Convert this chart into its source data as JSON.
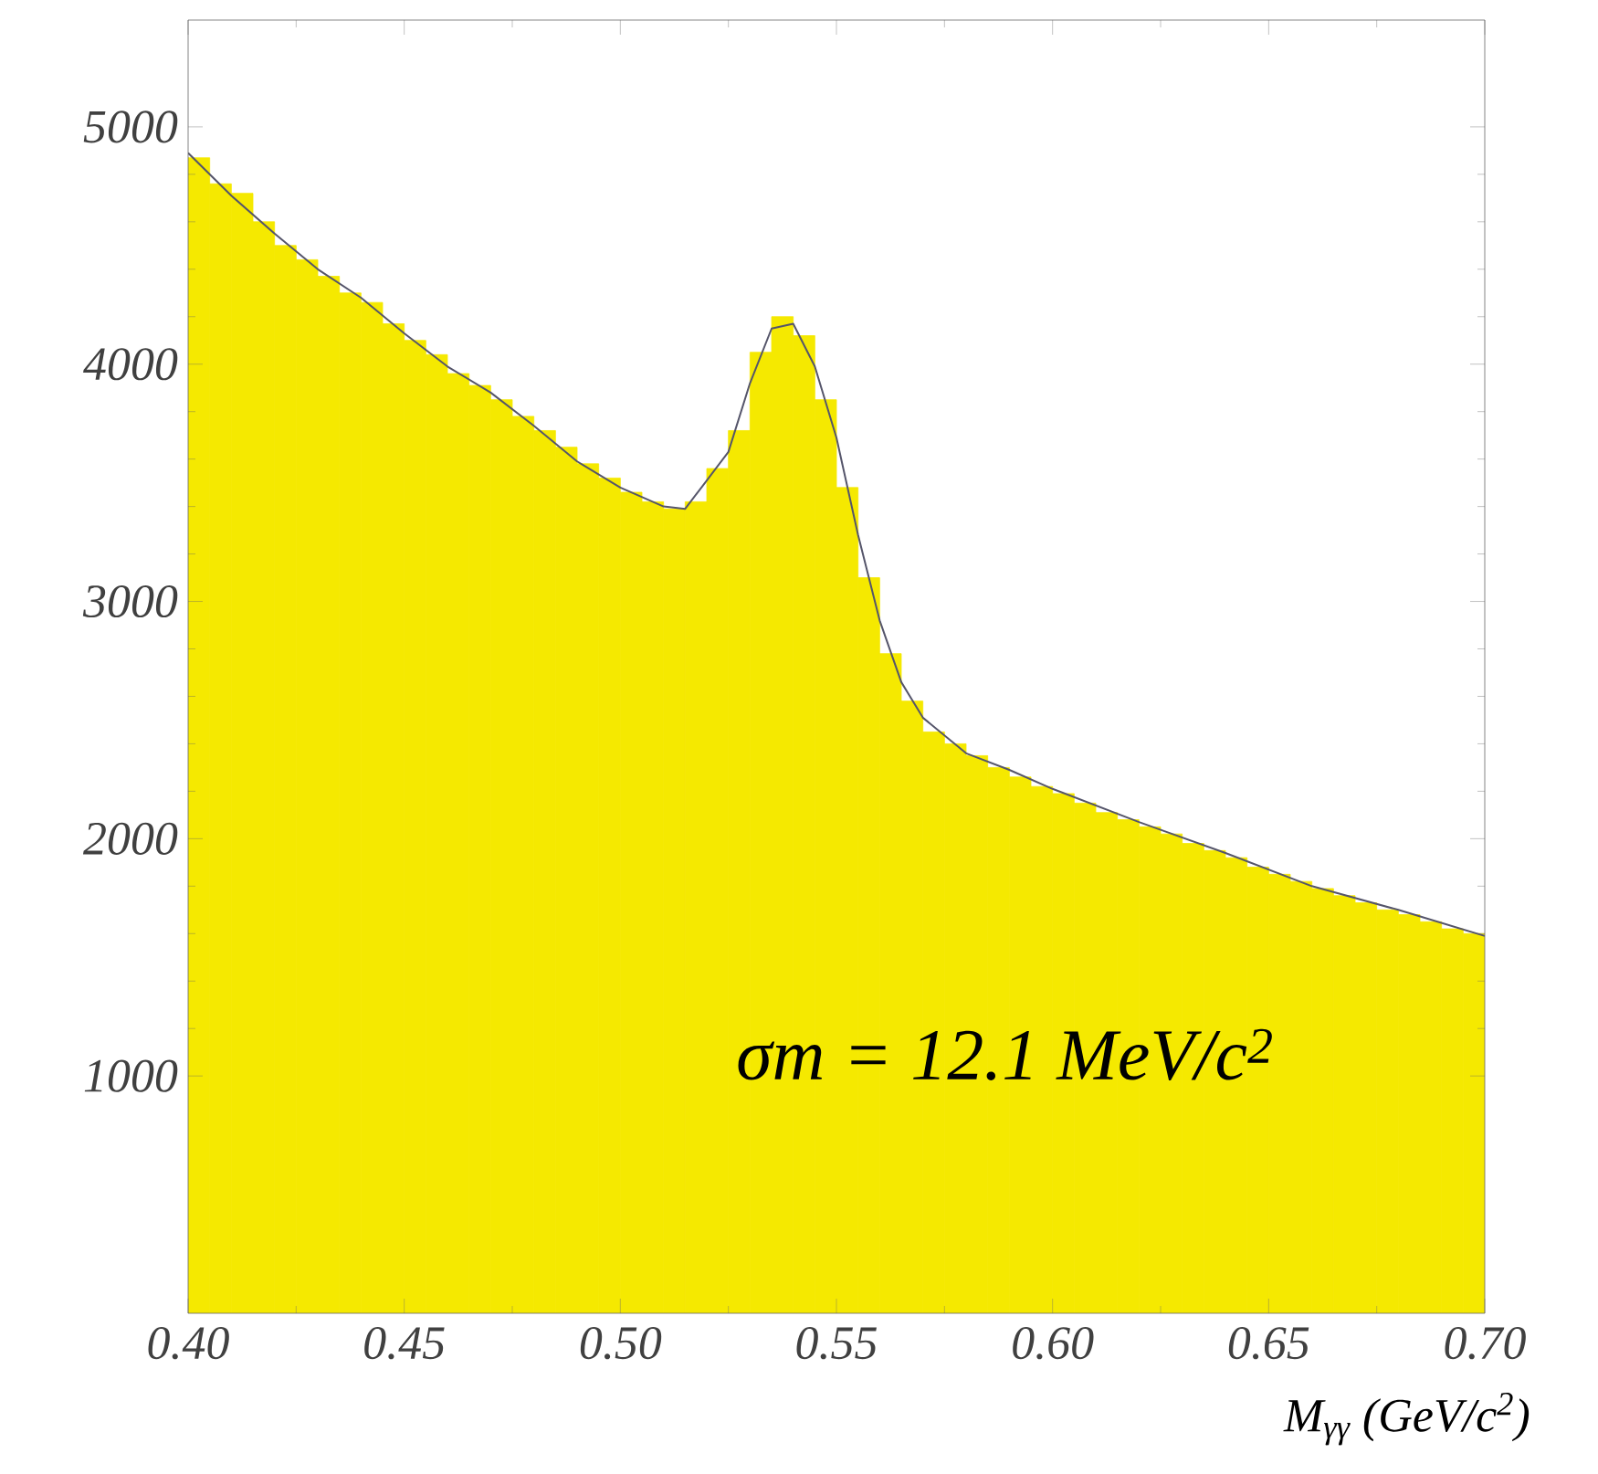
{
  "chart_data": {
    "type": "histogram",
    "xlabel": "M$_{γγ}$  (GeV/c$^{2}$)",
    "annotations": [
      "σm = 12.1 MeV/c$^{2}$"
    ],
    "xlim": [
      0.4,
      0.7
    ],
    "ylim": [
      0,
      5450
    ],
    "xticks": [
      {
        "value": 0.4,
        "label": "0.40"
      },
      {
        "value": 0.45,
        "label": "0.45"
      },
      {
        "value": 0.5,
        "label": "0.50"
      },
      {
        "value": 0.55,
        "label": "0.55"
      },
      {
        "value": 0.6,
        "label": "0.60"
      },
      {
        "value": 0.65,
        "label": "0.65"
      },
      {
        "value": 0.7,
        "label": "0.70"
      }
    ],
    "yticks": [
      1000,
      2000,
      3000,
      4000,
      5000
    ],
    "series": [
      {
        "color": "#f5e900",
        "bins": [
          0.4,
          0.405,
          0.41,
          0.415,
          0.42,
          0.425,
          0.43,
          0.435,
          0.44,
          0.445,
          0.45,
          0.455,
          0.46,
          0.465,
          0.47,
          0.475,
          0.48,
          0.485,
          0.49,
          0.495,
          0.5,
          0.505,
          0.51,
          0.515,
          0.52,
          0.525,
          0.53,
          0.535,
          0.54,
          0.545,
          0.55,
          0.555,
          0.56,
          0.565,
          0.57,
          0.575,
          0.58,
          0.585,
          0.59,
          0.595,
          0.6,
          0.605,
          0.61,
          0.615,
          0.62,
          0.625,
          0.63,
          0.635,
          0.64,
          0.645,
          0.65,
          0.655,
          0.66,
          0.665,
          0.67,
          0.675,
          0.68,
          0.685,
          0.69,
          0.695,
          0.7
        ],
        "values": [
          4870,
          4760,
          4720,
          4600,
          4500,
          4440,
          4370,
          4300,
          4260,
          4170,
          4100,
          4040,
          3960,
          3910,
          3850,
          3780,
          3720,
          3650,
          3580,
          3520,
          3460,
          3420,
          3390,
          3420,
          3560,
          3720,
          4050,
          4200,
          4120,
          3850,
          3480,
          3100,
          2780,
          2580,
          2450,
          2400,
          2350,
          2300,
          2260,
          2220,
          2190,
          2150,
          2110,
          2080,
          2050,
          2020,
          1980,
          1950,
          1920,
          1880,
          1850,
          1820,
          1790,
          1760,
          1730,
          1700,
          1680,
          1650,
          1620,
          1600
        ]
      },
      {
        "type": "line",
        "color": "#55556a",
        "x": [
          0.4,
          0.41,
          0.42,
          0.43,
          0.44,
          0.45,
          0.46,
          0.47,
          0.48,
          0.49,
          0.5,
          0.51,
          0.515,
          0.52,
          0.525,
          0.53,
          0.535,
          0.54,
          0.545,
          0.55,
          0.555,
          0.56,
          0.565,
          0.57,
          0.58,
          0.59,
          0.6,
          0.62,
          0.64,
          0.66,
          0.68,
          0.7
        ],
        "values": [
          4890,
          4710,
          4550,
          4400,
          4280,
          4130,
          3990,
          3880,
          3740,
          3590,
          3480,
          3400,
          3390,
          3510,
          3630,
          3920,
          4150,
          4170,
          3990,
          3690,
          3280,
          2920,
          2660,
          2510,
          2360,
          2290,
          2210,
          2070,
          1940,
          1800,
          1700,
          1590
        ]
      }
    ]
  }
}
